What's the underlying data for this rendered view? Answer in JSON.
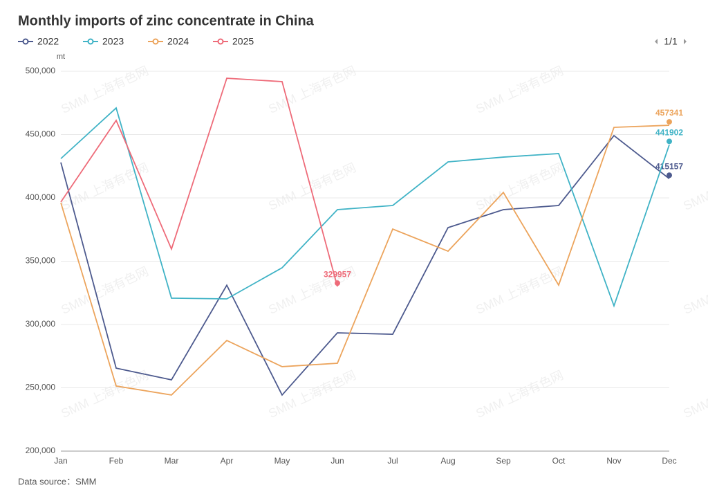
{
  "chart_data": {
    "type": "line",
    "title": "Monthly imports of zinc concentrate in China",
    "y_unit": "mt",
    "source": "Data source：SMM",
    "pager": "1/1",
    "watermark": "SMM 上海有色网",
    "categories": [
      "Jan",
      "Feb",
      "Mar",
      "Apr",
      "May",
      "Jun",
      "Jul",
      "Aug",
      "Sep",
      "Oct",
      "Nov",
      "Dec"
    ],
    "series": [
      {
        "name": "2022",
        "color": "#4d5a8e",
        "values": [
          428000,
          265500,
          256300,
          331000,
          244300,
          293400,
          292300,
          376500,
          390700,
          394000,
          449200,
          415157
        ]
      },
      {
        "name": "2023",
        "color": "#40b3c6",
        "values": [
          431000,
          471000,
          320800,
          320200,
          344800,
          390700,
          394000,
          428400,
          432200,
          435000,
          314700,
          441902
        ]
      },
      {
        "name": "2024",
        "color": "#eca45c",
        "values": [
          396200,
          251400,
          244300,
          287400,
          266700,
          269400,
          375400,
          357900,
          404300,
          331100,
          455700,
          457341
        ]
      },
      {
        "name": "2025",
        "color": "#ee6b79",
        "values": [
          396700,
          461200,
          359600,
          494500,
          491800,
          329957,
          null,
          null,
          null,
          null,
          null,
          null
        ]
      }
    ],
    "ylim": [
      200000,
      500000
    ],
    "yticks": [
      {
        "value": 200000,
        "label": "200,000"
      },
      {
        "value": 250000,
        "label": "250,000"
      },
      {
        "value": 300000,
        "label": "300,000"
      },
      {
        "value": 350000,
        "label": "350,000"
      },
      {
        "value": 400000,
        "label": "400,000"
      },
      {
        "value": 450000,
        "label": "450,000"
      },
      {
        "value": 500000,
        "label": "500,000"
      }
    ],
    "grid": true
  }
}
